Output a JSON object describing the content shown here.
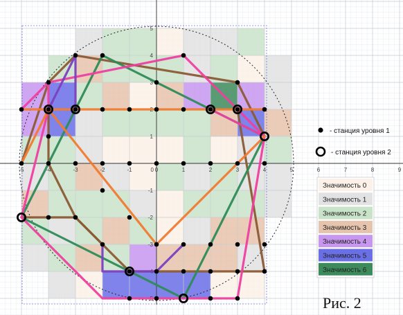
{
  "figure": {
    "caption": "Рис. 2",
    "legend_stations": [
      {
        "marker": "filled-dot",
        "label": "- станция уровня 1"
      },
      {
        "marker": "open-ring",
        "label": "- станция уровня 2"
      }
    ],
    "significance_legend": [
      {
        "label": "Значимость 0",
        "color": "#fbf1e8"
      },
      {
        "label": "Значимость 1",
        "color": "#e2e2e2"
      },
      {
        "label": "Значимость 2",
        "color": "#c9e3c9"
      },
      {
        "label": "Значимость 3",
        "color": "#e6c3ac"
      },
      {
        "label": "Значимость 4",
        "color": "#c796ee"
      },
      {
        "label": "Значимость 5",
        "color": "#6a6fe6"
      },
      {
        "label": "Значимость 6",
        "color": "#3d8a5c"
      }
    ],
    "x_ticks": [
      "-5",
      "-4",
      "-3",
      "-2",
      "-1",
      "0",
      "1",
      "2",
      "3",
      "4",
      "5",
      "6",
      "7",
      "8",
      "9"
    ],
    "y_ticks": [
      "5",
      "4",
      "3",
      "2",
      "1",
      "-1",
      "-2",
      "-3",
      "-4",
      "-5"
    ],
    "grid": {
      "x_range": [
        -5,
        5
      ],
      "y_range": [
        -5,
        5
      ],
      "significance_cells": [
        [
          null,
          null,
          1,
          2,
          2,
          0,
          1,
          1,
          2,
          null
        ],
        [
          null,
          2,
          3,
          2,
          2,
          2,
          1,
          2,
          0,
          1
        ],
        [
          4,
          5,
          2,
          3,
          0,
          3,
          4,
          6,
          4,
          1
        ],
        [
          4,
          5,
          1,
          2,
          2,
          2,
          2,
          3,
          5,
          3
        ],
        [
          2,
          2,
          1,
          0,
          0,
          0,
          2,
          0,
          1,
          2
        ],
        [
          1,
          2,
          3,
          1,
          0,
          2,
          1,
          2,
          1,
          1
        ],
        [
          3,
          2,
          2,
          2,
          1,
          0,
          2,
          2,
          2,
          1
        ],
        [
          2,
          1,
          2,
          3,
          2,
          0,
          1,
          3,
          3,
          null
        ],
        [
          1,
          2,
          3,
          2,
          4,
          3,
          3,
          3,
          1,
          null
        ],
        [
          null,
          1,
          0,
          5,
          5,
          5,
          5,
          0,
          0,
          null
        ]
      ]
    },
    "level1_stations": [
      [
        -5,
        2
      ],
      [
        -4,
        3
      ],
      [
        -3,
        4
      ],
      [
        -2,
        4
      ],
      [
        1,
        4
      ],
      [
        -4,
        2
      ],
      [
        -3,
        2
      ],
      [
        -2,
        2
      ],
      [
        -1,
        2
      ],
      [
        0,
        2
      ],
      [
        1,
        2
      ],
      [
        2,
        2
      ],
      [
        3,
        2
      ],
      [
        4,
        2
      ],
      [
        0,
        3
      ],
      [
        3,
        3
      ],
      [
        -4,
        1
      ],
      [
        -5,
        0
      ],
      [
        -4,
        0
      ],
      [
        -3,
        0
      ],
      [
        -2,
        0
      ],
      [
        -1,
        0
      ],
      [
        0,
        0
      ],
      [
        1,
        0
      ],
      [
        2,
        0
      ],
      [
        3,
        0
      ],
      [
        4,
        0
      ],
      [
        -2,
        -1
      ],
      [
        -1,
        -2
      ],
      [
        -4,
        -2
      ],
      [
        -3,
        -2
      ],
      [
        -2,
        -3
      ],
      [
        0,
        -3
      ],
      [
        1,
        -3
      ],
      [
        2,
        -3
      ],
      [
        3,
        -3
      ],
      [
        4,
        -3
      ],
      [
        -1,
        -4
      ],
      [
        0,
        -4
      ],
      [
        1,
        -4
      ],
      [
        2,
        -4
      ],
      [
        3,
        -4
      ],
      [
        4,
        -4
      ],
      [
        -1,
        -5
      ],
      [
        0,
        -5
      ],
      [
        2,
        -5
      ],
      [
        3,
        -5
      ]
    ],
    "level2_stations": [
      [
        -4,
        2
      ],
      [
        -3,
        2
      ],
      [
        2,
        2
      ],
      [
        3,
        2
      ],
      [
        4,
        1
      ],
      [
        -5,
        -2
      ],
      [
        -1,
        -4
      ],
      [
        1,
        -5
      ]
    ],
    "routes": [
      {
        "color": "#8b5a35",
        "points": [
          [
            -3,
            4
          ],
          [
            3,
            3
          ],
          [
            4,
            1
          ]
        ]
      },
      {
        "color": "#8b5a35",
        "points": [
          [
            -5,
            0
          ],
          [
            -4,
            3
          ],
          [
            -3,
            4
          ]
        ]
      },
      {
        "color": "#8b5a35",
        "points": [
          [
            -5,
            -2
          ],
          [
            -4,
            -2
          ],
          [
            -3,
            -2
          ],
          [
            -2,
            -3
          ],
          [
            -1,
            -4
          ],
          [
            0,
            -4
          ],
          [
            1,
            -4
          ],
          [
            2,
            -4
          ],
          [
            3,
            -4
          ],
          [
            4,
            -4
          ]
        ]
      },
      {
        "color": "#8b5a35",
        "points": [
          [
            -4,
            2
          ],
          [
            -4,
            1
          ],
          [
            -4,
            0
          ],
          [
            -3,
            -2
          ],
          [
            -2,
            -3
          ]
        ]
      },
      {
        "color": "#8b5a35",
        "points": [
          [
            3,
            2
          ],
          [
            4,
            -4
          ]
        ]
      },
      {
        "color": "#2e8b57",
        "points": [
          [
            -2,
            4
          ],
          [
            4,
            1
          ]
        ]
      },
      {
        "color": "#2e8b57",
        "points": [
          [
            -5,
            -2
          ],
          [
            -2,
            4
          ]
        ]
      },
      {
        "color": "#2e8b57",
        "points": [
          [
            -5,
            -2
          ],
          [
            1,
            -5
          ],
          [
            4,
            1
          ]
        ]
      },
      {
        "color": "#ee3fa0",
        "points": [
          [
            -5,
            2
          ],
          [
            -4,
            3
          ],
          [
            1,
            4
          ],
          [
            3,
            2
          ],
          [
            4,
            1
          ]
        ]
      },
      {
        "color": "#ee3fa0",
        "points": [
          [
            -5,
            -2
          ],
          [
            -4,
            2
          ],
          [
            -4,
            3
          ]
        ]
      },
      {
        "color": "#ee3fa0",
        "points": [
          [
            -5,
            -2
          ],
          [
            -2,
            -5
          ],
          [
            1,
            -5
          ],
          [
            3,
            -5
          ],
          [
            4,
            1
          ]
        ]
      },
      {
        "color": "#ee3fa0",
        "points": [
          [
            2,
            2
          ],
          [
            4,
            1
          ]
        ]
      },
      {
        "color": "#f07a30",
        "points": [
          [
            -5,
            2
          ],
          [
            4,
            2
          ]
        ]
      },
      {
        "color": "#f07a30",
        "points": [
          [
            -4,
            2
          ],
          [
            0,
            -3
          ],
          [
            4,
            1
          ]
        ]
      },
      {
        "color": "#f07a30",
        "points": [
          [
            -5,
            0
          ],
          [
            -4,
            2
          ]
        ]
      },
      {
        "color": "#7b3fc0",
        "points": [
          [
            -4,
            2
          ],
          [
            -3,
            4
          ],
          [
            -3,
            2
          ]
        ]
      },
      {
        "color": "#7b3fc0",
        "points": [
          [
            -2,
            -3
          ],
          [
            -2,
            -4
          ],
          [
            0,
            -4
          ],
          [
            1,
            -3
          ]
        ]
      }
    ]
  }
}
